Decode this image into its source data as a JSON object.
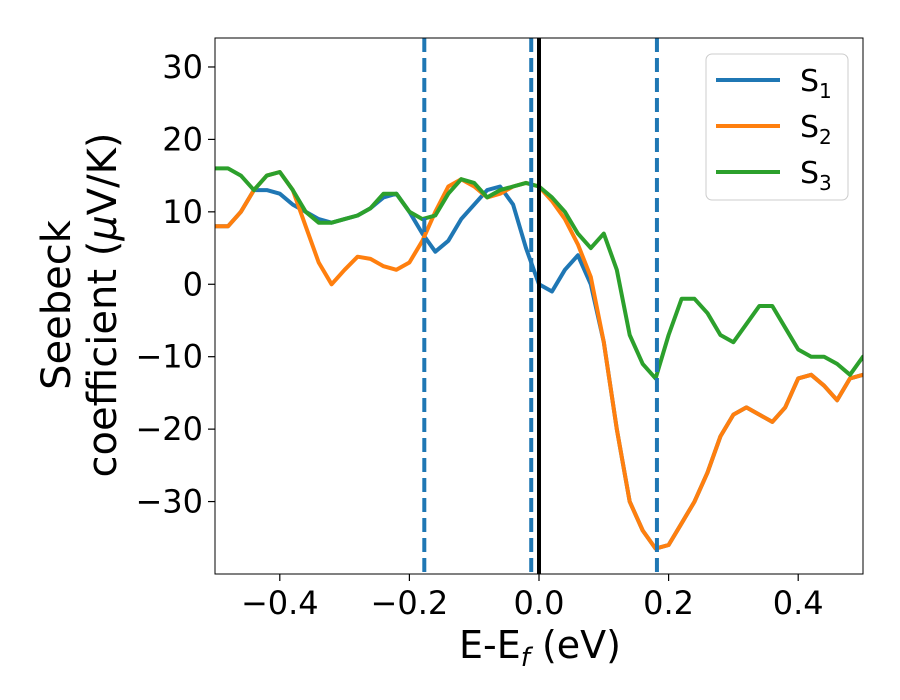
{
  "chart_data": {
    "type": "line",
    "title": "",
    "xlabel": {
      "main": "E-E",
      "sub": "f",
      "suffix": " (eV)"
    },
    "ylabel": {
      "line1": "Seebeck",
      "line2_prefix": "coefficient  (",
      "mu": "μ",
      "line2_suffix": "V/K)"
    },
    "xlim": [
      -0.5,
      0.5
    ],
    "ylim": [
      -40,
      34
    ],
    "xticks": [
      -0.4,
      -0.2,
      0.0,
      0.2,
      0.4
    ],
    "xtick_labels": [
      "−0.4",
      "−0.2",
      "0.0",
      "0.2",
      "0.4"
    ],
    "yticks": [
      -30,
      -20,
      -10,
      0,
      10,
      20,
      30
    ],
    "ytick_labels": [
      "−30",
      "−20",
      "−10",
      "0",
      "10",
      "20",
      "30"
    ],
    "grid": false,
    "legend": "top-right",
    "vlines": [
      {
        "x": -0.177,
        "style": "dashed",
        "color": "#1f77b4"
      },
      {
        "x": -0.012,
        "style": "dashed",
        "color": "#1f77b4"
      },
      {
        "x": 0.0,
        "style": "solid",
        "color": "#000000"
      },
      {
        "x": 0.182,
        "style": "dashed",
        "color": "#1f77b4"
      }
    ],
    "series": [
      {
        "name": "S",
        "sub": "1",
        "color": "#1f77b4",
        "x": [
          -0.5,
          -0.48,
          -0.46,
          -0.44,
          -0.42,
          -0.4,
          -0.38,
          -0.36,
          -0.34,
          -0.32,
          -0.3,
          -0.28,
          -0.26,
          -0.24,
          -0.22,
          -0.2,
          -0.18,
          -0.16,
          -0.14,
          -0.12,
          -0.1,
          -0.08,
          -0.06,
          -0.04,
          -0.02,
          0.0,
          0.02,
          0.04,
          0.06,
          0.08,
          0.1,
          0.12,
          0.14,
          0.16,
          0.18,
          0.2,
          0.22,
          0.24,
          0.26,
          0.28,
          0.3,
          0.32,
          0.34,
          0.36,
          0.38,
          0.4,
          0.42,
          0.44,
          0.46,
          0.48,
          0.5
        ],
        "y": [
          8,
          8,
          10,
          13,
          13,
          12.5,
          11,
          10,
          9,
          8.5,
          9,
          9.5,
          10.5,
          12,
          12.5,
          10,
          7,
          4.5,
          6,
          9,
          11,
          13,
          13.5,
          11,
          5,
          0,
          -1,
          2,
          4,
          0,
          -8,
          -20,
          -30,
          -34,
          -36.5,
          -36,
          -33,
          -30,
          -26,
          -21,
          -18,
          -17,
          -18,
          -19,
          -17,
          -13,
          -12.5,
          -14,
          -16,
          -13,
          -12.5
        ]
      },
      {
        "name": "S",
        "sub": "2",
        "color": "#ff7f0e",
        "x": [
          -0.5,
          -0.48,
          -0.46,
          -0.44,
          -0.42,
          -0.4,
          -0.38,
          -0.36,
          -0.34,
          -0.32,
          -0.3,
          -0.28,
          -0.26,
          -0.24,
          -0.22,
          -0.2,
          -0.18,
          -0.16,
          -0.14,
          -0.12,
          -0.1,
          -0.08,
          -0.06,
          -0.04,
          -0.02,
          0.0,
          0.02,
          0.04,
          0.06,
          0.08,
          0.1,
          0.12,
          0.14,
          0.16,
          0.18,
          0.2,
          0.22,
          0.24,
          0.26,
          0.28,
          0.3,
          0.32,
          0.34,
          0.36,
          0.38,
          0.4,
          0.42,
          0.44,
          0.46,
          0.48,
          0.5
        ],
        "y": [
          8,
          8,
          10,
          13,
          15,
          15.5,
          13,
          8,
          3,
          0,
          2,
          3.8,
          3.5,
          2.5,
          2,
          3,
          6,
          10,
          13.5,
          14.5,
          13.5,
          12,
          12.5,
          13.5,
          14,
          13.5,
          11.5,
          9,
          5.5,
          1,
          -8,
          -20,
          -30,
          -34,
          -36.5,
          -36,
          -33,
          -30,
          -26,
          -21,
          -18,
          -17,
          -18,
          -19,
          -17,
          -13,
          -12.5,
          -14,
          -16,
          -13,
          -12.5
        ]
      },
      {
        "name": "S",
        "sub": "3",
        "color": "#2ca02c",
        "x": [
          -0.5,
          -0.48,
          -0.46,
          -0.44,
          -0.42,
          -0.4,
          -0.38,
          -0.36,
          -0.34,
          -0.32,
          -0.3,
          -0.28,
          -0.26,
          -0.24,
          -0.22,
          -0.2,
          -0.18,
          -0.16,
          -0.14,
          -0.12,
          -0.1,
          -0.08,
          -0.06,
          -0.04,
          -0.02,
          0.0,
          0.02,
          0.04,
          0.06,
          0.08,
          0.1,
          0.12,
          0.14,
          0.16,
          0.18,
          0.2,
          0.22,
          0.24,
          0.26,
          0.28,
          0.3,
          0.32,
          0.34,
          0.36,
          0.38,
          0.4,
          0.42,
          0.44,
          0.46,
          0.48,
          0.5
        ],
        "y": [
          16,
          16,
          15,
          13,
          15,
          15.5,
          13,
          10,
          8.5,
          8.5,
          9,
          9.5,
          10.5,
          12.5,
          12.5,
          10,
          9,
          9.5,
          12.5,
          14.5,
          14,
          12,
          13,
          13.5,
          14,
          13.5,
          12,
          10,
          7,
          5,
          7,
          2,
          -7,
          -11,
          -13,
          -7,
          -2,
          -2,
          -4,
          -7,
          -8,
          -5.5,
          -3,
          -3,
          -6,
          -9,
          -10,
          -10,
          -11,
          -12.5,
          -10
        ]
      }
    ]
  }
}
